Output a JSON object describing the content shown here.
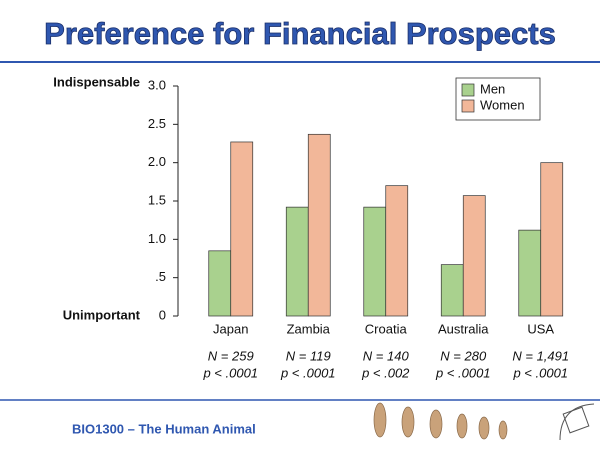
{
  "header": {
    "title": "Preference for Financial Prospects"
  },
  "chart_data": {
    "type": "bar",
    "categories": [
      "Japan",
      "Zambia",
      "Croatia",
      "Australia",
      "USA"
    ],
    "series": [
      {
        "name": "Men",
        "color": "#a9d18e",
        "values": [
          0.85,
          1.42,
          1.42,
          0.67,
          1.12
        ]
      },
      {
        "name": "Women",
        "color": "#f2b799",
        "values": [
          2.27,
          2.37,
          1.7,
          1.57,
          2.0
        ]
      }
    ],
    "ylim": [
      0,
      3
    ],
    "yticks": [
      0,
      {
        "value": 0.5,
        "label": ".5"
      },
      {
        "value": 1,
        "label": "1.0"
      },
      1.5,
      {
        "value": 2,
        "label": "2.0"
      },
      2.5,
      {
        "value": 3,
        "label": "3.0"
      }
    ],
    "y_top_label": "Indispensable",
    "y_bottom_label": "Unimportant",
    "legend": "top-right",
    "annotations": [
      {
        "n": "N = 259",
        "p": "p < .0001"
      },
      {
        "n": "N = 119",
        "p": "p < .0001"
      },
      {
        "n": "N = 140",
        "p": "p < .002"
      },
      {
        "n": "N = 280",
        "p": "p < .0001"
      },
      {
        "n": "N = 1,491",
        "p": "p < .0001"
      }
    ]
  },
  "footer": {
    "text": "BIO1300 – The Human Animal"
  }
}
